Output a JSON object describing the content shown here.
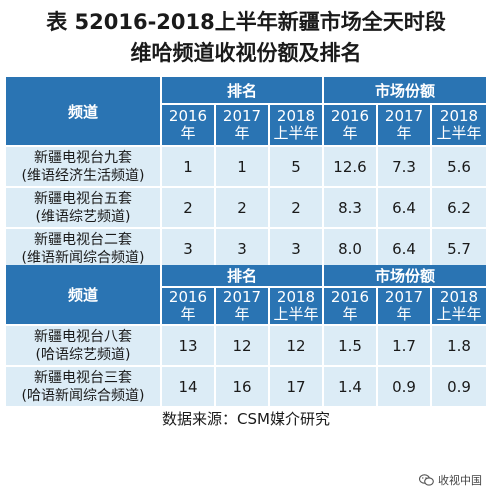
{
  "title": {
    "line1": "表 52016-2018上半年新疆市场全天时段",
    "line2": "维哈频道收视份额及排名"
  },
  "table1": {
    "channel_header": "频道",
    "rank_header": "排名",
    "share_header": "市场份额",
    "years": [
      {
        "line1": "2016",
        "line2": "年"
      },
      {
        "line1": "2017",
        "line2": "年"
      },
      {
        "line1": "2018",
        "line2": "上半年"
      }
    ],
    "rows": [
      {
        "name1": "新疆电视台九套",
        "name2": "(维语经济生活频道)",
        "rank": [
          "1",
          "1",
          "5"
        ],
        "share": [
          "12.6",
          "7.3",
          "5.6"
        ]
      },
      {
        "name1": "新疆电视台五套",
        "name2": "(维语综艺频道)",
        "rank": [
          "2",
          "2",
          "2"
        ],
        "share": [
          "8.3",
          "6.4",
          "6.2"
        ]
      },
      {
        "name1": "新疆电视台二套",
        "name2": "(维语新闻综合频道)",
        "rank": [
          "3",
          "3",
          "3"
        ],
        "share": [
          "8.0",
          "6.4",
          "5.7"
        ]
      }
    ]
  },
  "table2": {
    "channel_header": "频道",
    "rank_header": "排名",
    "share_header": "市场份额",
    "years": [
      {
        "line1": "2016",
        "line2": "年"
      },
      {
        "line1": "2017",
        "line2": "年"
      },
      {
        "line1": "2018",
        "line2": "上半年"
      }
    ],
    "rows": [
      {
        "name1": "新疆电视台八套",
        "name2": "(哈语综艺频道)",
        "rank": [
          "13",
          "12",
          "12"
        ],
        "share": [
          "1.5",
          "1.7",
          "1.8"
        ]
      },
      {
        "name1": "新疆电视台三套",
        "name2": "(哈语新闻综合频道)",
        "rank": [
          "14",
          "16",
          "17"
        ],
        "share": [
          "1.4",
          "0.9",
          "0.9"
        ]
      }
    ]
  },
  "source": "数据来源：CSM媒介研究",
  "watermark": {
    "text": "收视中国",
    "icon": "wechat-icon"
  },
  "colors": {
    "header_bg": "#2a74b3",
    "cell_bg": "#dcecf6"
  }
}
